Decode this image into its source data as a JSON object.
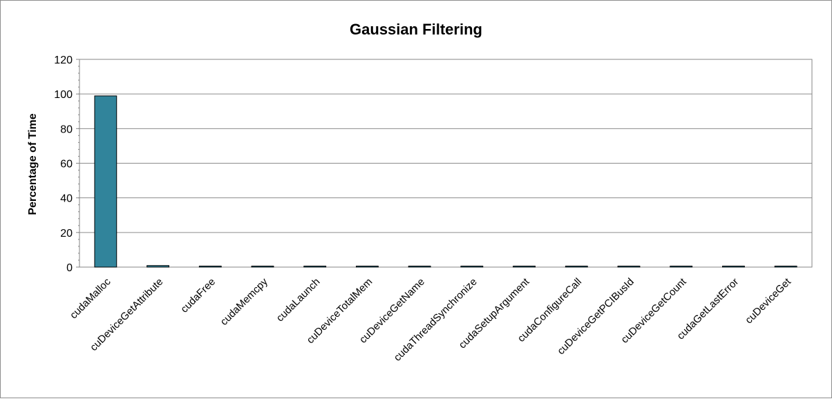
{
  "chart_data": {
    "type": "bar",
    "title": "Gaussian Filtering",
    "xlabel": "",
    "ylabel": "Percentage of Time",
    "ylim": [
      0,
      120
    ],
    "yticks": [
      0,
      20,
      40,
      60,
      80,
      100,
      120
    ],
    "grid": true,
    "legend": "none",
    "categories": [
      "cudaMalloc",
      "cuDeviceGetAttribute",
      "cudaFree",
      "cudaMemcpy",
      "cudaLaunch",
      "cuDeviceTotalMem",
      "cuDeviceGetName",
      "cudaThreadSynchronize",
      "cudaSetupArgument",
      "cudaConfigureCall",
      "cuDeviceGetPCIBusId",
      "cuDeviceGetCount",
      "cudaGetLastError",
      "cuDeviceGet"
    ],
    "values": [
      98.9,
      0.9,
      0.1,
      0.1,
      0.05,
      0.05,
      0.05,
      0.02,
      0.02,
      0.02,
      0.01,
      0.01,
      0.01,
      0.01
    ],
    "colors": {
      "bar": "#31849b",
      "bar_stroke": "#000000",
      "grid": "#8c8c8c",
      "axis": "#868686"
    }
  }
}
